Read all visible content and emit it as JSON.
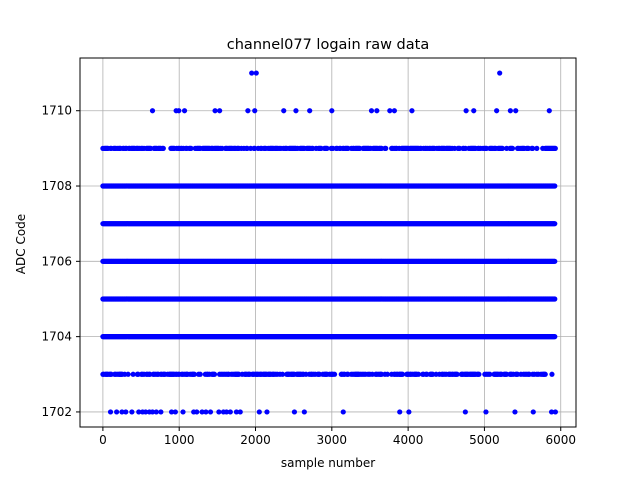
{
  "chart_data": {
    "type": "scatter",
    "title": "channel077 logain raw data",
    "xlabel": "sample number",
    "ylabel": "ADC Code",
    "xlim": [
      -300,
      6200
    ],
    "ylim": [
      1701.6,
      1711.4
    ],
    "xticks": [
      0,
      1000,
      2000,
      3000,
      4000,
      5000,
      6000
    ],
    "yticks": [
      1702,
      1704,
      1706,
      1708,
      1710
    ],
    "grid": true,
    "marker_color": "#0000ff",
    "series": [
      {
        "points": [
          [
            1950,
            1711
          ],
          [
            2010,
            1711
          ],
          [
            5200,
            1711
          ],
          [
            650,
            1710
          ],
          [
            960,
            1710
          ],
          [
            995,
            1710
          ],
          [
            1070,
            1710
          ],
          [
            1470,
            1710
          ],
          [
            1530,
            1710
          ],
          [
            1900,
            1710
          ],
          [
            1990,
            1710
          ],
          [
            2370,
            1710
          ],
          [
            2530,
            1710
          ],
          [
            2710,
            1710
          ],
          [
            3000,
            1710
          ],
          [
            3520,
            1710
          ],
          [
            3590,
            1710
          ],
          [
            3760,
            1710
          ],
          [
            3820,
            1710
          ],
          [
            4050,
            1710
          ],
          [
            4760,
            1710
          ],
          [
            4860,
            1710
          ],
          [
            5160,
            1710
          ],
          [
            5340,
            1710
          ],
          [
            5410,
            1710
          ],
          [
            5850,
            1710
          ],
          [
            1702,
            1702
          ],
          [
            180,
            1702
          ],
          [
            250,
            1702
          ],
          [
            300,
            1702
          ],
          [
            380,
            1702
          ],
          [
            470,
            1702
          ],
          [
            520,
            1702
          ],
          [
            560,
            1702
          ],
          [
            610,
            1702
          ],
          [
            650,
            1702
          ],
          [
            700,
            1702
          ],
          [
            760,
            1702
          ],
          [
            900,
            1702
          ],
          [
            950,
            1702
          ],
          [
            1050,
            1702
          ],
          [
            1190,
            1702
          ],
          [
            1230,
            1702
          ],
          [
            1300,
            1702
          ],
          [
            1350,
            1702
          ],
          [
            1410,
            1702
          ],
          [
            1520,
            1702
          ],
          [
            1580,
            1702
          ],
          [
            1620,
            1702
          ],
          [
            1670,
            1702
          ],
          [
            1750,
            1702
          ],
          [
            1800,
            1702
          ],
          [
            2050,
            1702
          ],
          [
            2150,
            1702
          ],
          [
            2510,
            1702
          ],
          [
            2640,
            1702
          ],
          [
            3150,
            1702
          ],
          [
            3890,
            1702
          ],
          [
            4010,
            1702
          ],
          [
            4750,
            1702
          ],
          [
            5020,
            1702
          ],
          [
            5400,
            1702
          ],
          [
            5640,
            1702
          ],
          [
            5880,
            1702
          ],
          [
            5930,
            1702
          ]
        ],
        "dense_levels": [
          1708,
          1707,
          1706,
          1705,
          1704
        ],
        "dense_x_range": [
          0,
          5930
        ],
        "sparse_levels": [
          1709,
          1703
        ],
        "sparse_x_range": [
          0,
          5930
        ]
      }
    ]
  }
}
